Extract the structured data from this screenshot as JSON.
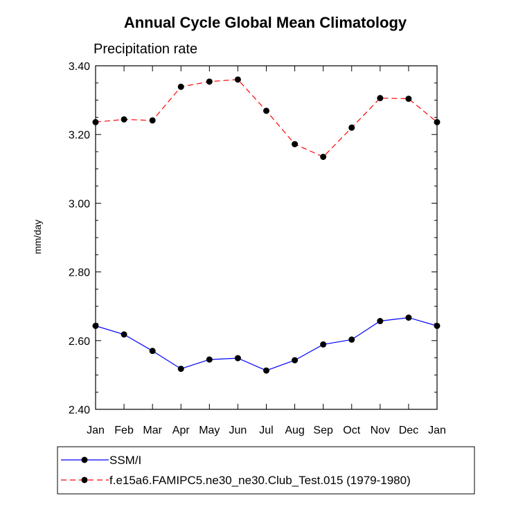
{
  "chart_data": {
    "type": "line",
    "title": "Annual Cycle Global Mean Climatology",
    "subtitle": "Precipitation rate",
    "ylabel": "mm/day",
    "xlabel": "",
    "categories": [
      "Jan",
      "Feb",
      "Mar",
      "Apr",
      "May",
      "Jun",
      "Jul",
      "Aug",
      "Sep",
      "Oct",
      "Nov",
      "Dec",
      "Jan"
    ],
    "ylim": [
      2.4,
      3.4
    ],
    "yticks": [
      "2.40",
      "2.60",
      "2.80",
      "3.00",
      "3.20",
      "3.40"
    ],
    "series": [
      {
        "name": "SSM/I",
        "color": "#0000ff",
        "dash": "solid",
        "values": [
          2.643,
          2.618,
          2.57,
          2.518,
          2.545,
          2.549,
          2.513,
          2.543,
          2.589,
          2.603,
          2.657,
          2.667,
          2.643
        ]
      },
      {
        "name": "f.e15a6.FAMIPC5.ne30_ne30.Club_Test.015 (1979-1980)",
        "color": "#ff0000",
        "dash": "dashed",
        "values": [
          3.236,
          3.244,
          3.241,
          3.339,
          3.354,
          3.36,
          3.269,
          3.172,
          3.135,
          3.22,
          3.306,
          3.304,
          3.236
        ]
      }
    ],
    "legend_position": "bottom"
  }
}
